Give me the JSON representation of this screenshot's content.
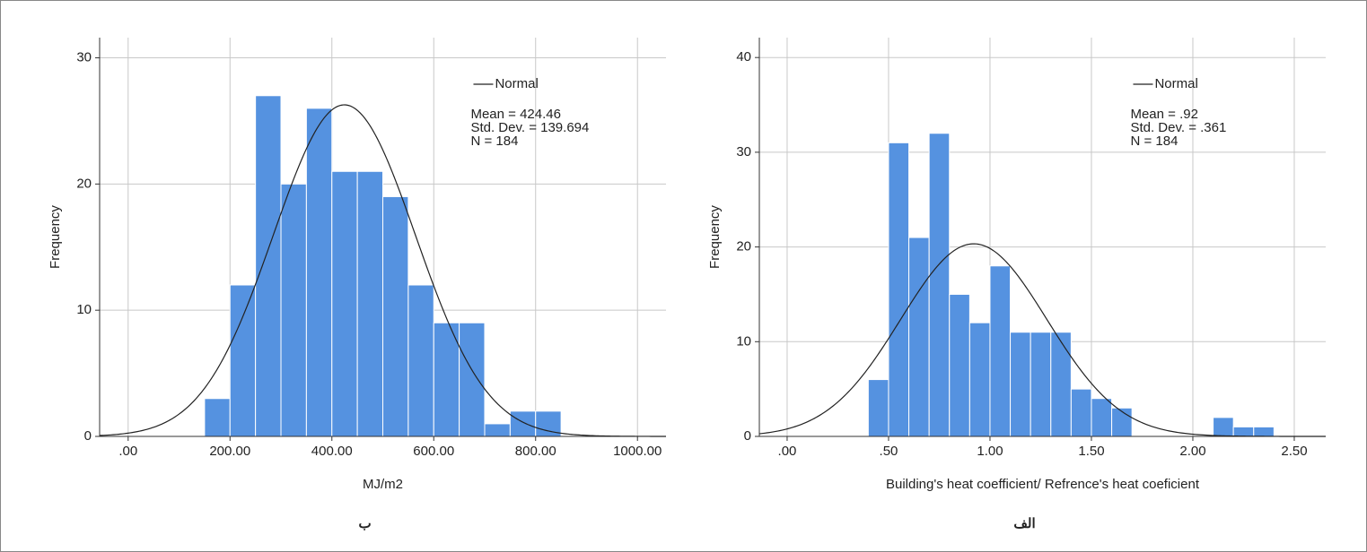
{
  "chart_data": [
    {
      "type": "histogram",
      "caption": "ب",
      "xlabel": "MJ/m2",
      "ylabel": "Frequency",
      "color": "#5592e0",
      "grid": true,
      "bins": [
        150,
        200,
        250,
        300,
        350,
        400,
        450,
        500,
        550,
        600,
        650,
        700,
        750,
        800,
        850
      ],
      "values": [
        3,
        12,
        27,
        20,
        26,
        21,
        21,
        19,
        12,
        9,
        9,
        1,
        2,
        2
      ],
      "xlim": [
        -56,
        1056
      ],
      "ylim": [
        0,
        31.6
      ],
      "xticks": [
        {
          "value": 0,
          "label": ".00"
        },
        {
          "value": 200,
          "label": "200.00"
        },
        {
          "value": 400,
          "label": "400.00"
        },
        {
          "value": 600,
          "label": "600.00"
        },
        {
          "value": 800,
          "label": "800.00"
        },
        {
          "value": 1000,
          "label": "1000.00"
        }
      ],
      "yticks": [
        0,
        10,
        20,
        30
      ],
      "curve": {
        "name": "Normal",
        "color": "#222222"
      },
      "mean": {
        "value": 424.46,
        "label": "Mean = 424.46"
      },
      "sd": {
        "value": 139.694,
        "label": "Std. Dev. = 139.694"
      },
      "n": {
        "value": 184,
        "label": "N = 184"
      }
    },
    {
      "type": "histogram",
      "caption": "الف",
      "xlabel": "Building's heat coefficient/ Refrence's heat coeficient",
      "ylabel": "Frequency",
      "color": "#5592e0",
      "grid": true,
      "bins": [
        0.4,
        0.5,
        0.6,
        0.7,
        0.8,
        0.9,
        1.0,
        1.1,
        1.2,
        1.3,
        1.4,
        1.5,
        1.6,
        1.7,
        1.8,
        1.9,
        2.0,
        2.1,
        2.2,
        2.3,
        2.4
      ],
      "values": [
        6,
        31,
        21,
        32,
        15,
        12,
        18,
        11,
        11,
        11,
        5,
        4,
        3,
        0,
        0,
        0,
        0,
        2,
        1,
        1
      ],
      "xlim": [
        -0.137,
        2.655
      ],
      "ylim": [
        0,
        42.1
      ],
      "xticks": [
        {
          "value": 0,
          "label": ".00"
        },
        {
          "value": 0.5,
          "label": ".50"
        },
        {
          "value": 1,
          "label": "1.00"
        },
        {
          "value": 1.5,
          "label": "1.50"
        },
        {
          "value": 2,
          "label": "2.00"
        },
        {
          "value": 2.5,
          "label": "2.50"
        }
      ],
      "yticks": [
        0,
        10,
        20,
        30,
        40
      ],
      "curve": {
        "name": "Normal",
        "color": "#222222"
      },
      "mean": {
        "value": 0.92,
        "label": "Mean = .92"
      },
      "sd": {
        "value": 0.361,
        "label": "Std. Dev. = .361"
      },
      "n": {
        "value": 184,
        "label": "N = 184"
      }
    }
  ]
}
